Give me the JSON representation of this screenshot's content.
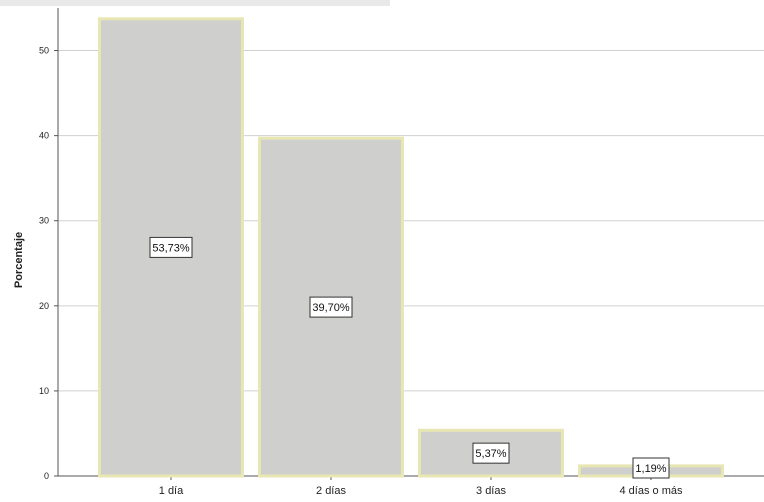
{
  "chart_data": {
    "type": "bar",
    "title": "",
    "xlabel": "",
    "ylabel": "Porcentaje",
    "categories": [
      "1 día",
      "2 días",
      "3 días",
      "4 días o más"
    ],
    "values": [
      53.73,
      39.7,
      5.37,
      1.19
    ],
    "data_labels": [
      "53,73%",
      "39,70%",
      "5,37%",
      "1,19%"
    ],
    "ylim": [
      0,
      55
    ],
    "yticks": [
      0,
      10,
      20,
      30,
      40,
      50
    ],
    "grid": true,
    "bar_color": "#cfcfcd",
    "bar_edge_color": "#e8e7b4"
  }
}
